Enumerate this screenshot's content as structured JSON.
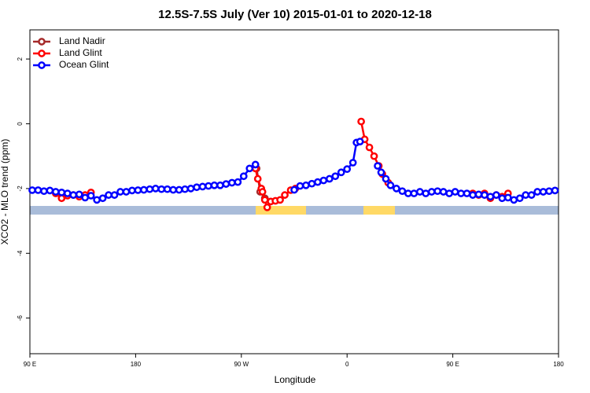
{
  "chart_data": {
    "type": "line",
    "title": "12.5S-7.5S July (Ver 10)   2015-01-01 to 2020-12-18",
    "xlabel": "Longitude",
    "ylabel": "XCO2 - MLO trend (ppm)",
    "xlim": [
      90,
      540
    ],
    "ylim": [
      -7.1,
      2.9
    ],
    "xticks": [
      {
        "value": 90,
        "label": "90 E"
      },
      180,
      {
        "value": 270,
        "label": "90 W"
      },
      {
        "value": 360,
        "label": "0"
      },
      {
        "value": 450,
        "label": "90 E"
      },
      {
        "value": 540,
        "label": "180"
      }
    ],
    "yticks": [
      2,
      0,
      -2,
      -4,
      -6
    ],
    "legend": "topleft",
    "grid": false,
    "series": [
      {
        "name": "Land Nadir",
        "color": "#a52a2a",
        "x": [
          283,
          286,
          290
        ],
        "values": [
          -1.38,
          -2.1,
          -2.3
        ]
      },
      {
        "name": "Land Glint",
        "color": "#ff0000",
        "x": [
          112,
          117,
          122,
          127,
          132,
          137,
          142,
          null,
          282,
          284,
          287,
          288,
          290,
          292,
          295,
          299,
          303,
          307,
          312,
          316,
          null,
          372,
          375,
          379,
          383,
          387,
          390,
          395,
          null,
          467,
          472,
          477,
          482,
          487,
          492,
          497
        ],
        "values": [
          -2.15,
          -2.3,
          -2.22,
          -2.2,
          -2.25,
          -2.2,
          -2.12,
          null,
          -1.38,
          -1.7,
          -2.0,
          -2.1,
          -2.35,
          -2.58,
          -2.4,
          -2.38,
          -2.35,
          -2.2,
          -2.05,
          -2.0,
          null,
          0.07,
          -0.48,
          -0.73,
          -1.0,
          -1.3,
          -1.55,
          -1.82,
          null,
          -2.15,
          -2.2,
          -2.15,
          -2.3,
          -2.2,
          -2.25,
          -2.15
        ]
      },
      {
        "name": "Ocean Glint",
        "color": "#0000ff",
        "x": [
          92,
          97,
          102,
          107,
          112,
          117,
          122,
          127,
          132,
          137,
          142,
          147,
          152,
          157,
          162,
          167,
          172,
          177,
          182,
          187,
          192,
          197,
          202,
          207,
          212,
          217,
          222,
          227,
          232,
          237,
          242,
          247,
          252,
          257,
          262,
          267,
          272,
          277,
          282,
          null,
          315,
          320,
          325,
          330,
          335,
          340,
          345,
          350,
          355,
          360,
          365,
          368,
          371,
          null,
          386,
          389,
          393,
          397,
          402,
          407,
          412,
          417,
          422,
          427,
          432,
          437,
          442,
          447,
          452,
          457,
          462,
          467,
          472,
          477,
          482,
          487,
          492,
          497,
          502,
          507,
          512,
          517,
          522,
          527,
          532,
          537
        ],
        "values": [
          -2.05,
          -2.05,
          -2.08,
          -2.06,
          -2.1,
          -2.12,
          -2.15,
          -2.2,
          -2.18,
          -2.28,
          -2.22,
          -2.35,
          -2.3,
          -2.2,
          -2.2,
          -2.1,
          -2.1,
          -2.06,
          -2.05,
          -2.04,
          -2.02,
          -2.0,
          -2.02,
          -2.02,
          -2.04,
          -2.04,
          -2.02,
          -2.0,
          -1.96,
          -1.94,
          -1.92,
          -1.9,
          -1.9,
          -1.86,
          -1.82,
          -1.8,
          -1.62,
          -1.38,
          -1.26,
          null,
          -2.04,
          -1.92,
          -1.9,
          -1.85,
          -1.8,
          -1.75,
          -1.7,
          -1.62,
          -1.5,
          -1.4,
          -1.2,
          -0.58,
          -0.55,
          null,
          -1.3,
          -1.5,
          -1.7,
          -1.9,
          -2.0,
          -2.08,
          -2.15,
          -2.15,
          -2.1,
          -2.15,
          -2.1,
          -2.08,
          -2.1,
          -2.15,
          -2.1,
          -2.15,
          -2.15,
          -2.2,
          -2.18,
          -2.2,
          -2.25,
          -2.2,
          -2.3,
          -2.28,
          -2.35,
          -2.3,
          -2.2,
          -2.2,
          -2.1,
          -2.1,
          -2.08,
          -2.06
        ]
      }
    ]
  }
}
